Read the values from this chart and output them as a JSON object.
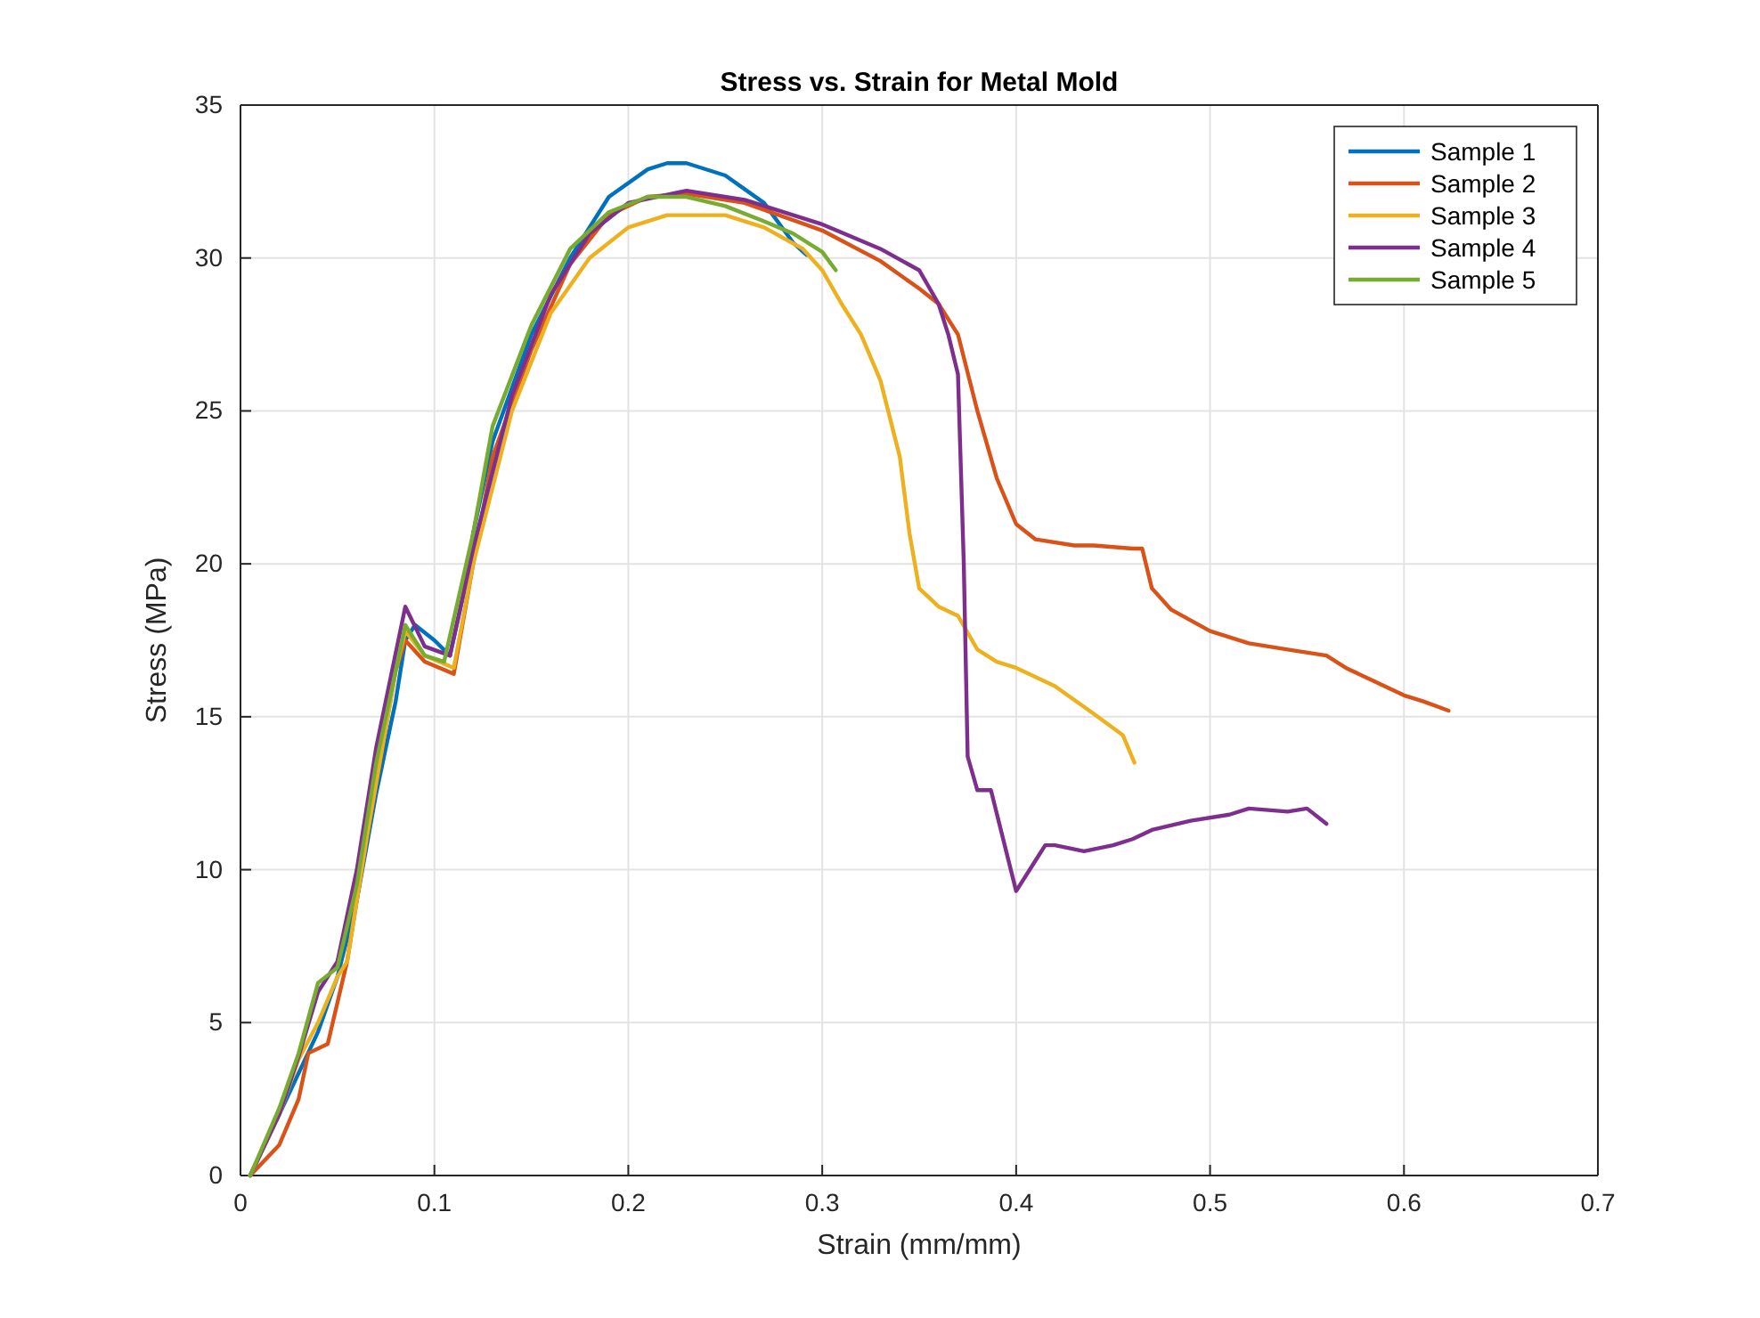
{
  "chart_data": {
    "type": "line",
    "title": "Stress vs. Strain for Metal Mold",
    "xlabel": "Strain (mm/mm)",
    "ylabel": "Stress (MPa)",
    "xlim": [
      0,
      0.7
    ],
    "xticks": [
      0,
      0.1,
      0.2,
      0.3,
      0.4,
      0.5,
      0.6,
      0.7
    ],
    "ylim": [
      0,
      35
    ],
    "yticks": [
      0,
      5,
      10,
      15,
      20,
      25,
      30,
      35
    ],
    "grid": true,
    "legend": "top right",
    "line_style": "solid",
    "series": [
      {
        "name": "Sample 1",
        "color": "#0072bd",
        "x": [
          0.005,
          0.02,
          0.04,
          0.05,
          0.06,
          0.07,
          0.08,
          0.085,
          0.09,
          0.1,
          0.108,
          0.115,
          0.12,
          0.13,
          0.15,
          0.17,
          0.19,
          0.21,
          0.22,
          0.23,
          0.25,
          0.27,
          0.285,
          0.292
        ],
        "values": [
          0,
          2,
          4.7,
          6.5,
          9,
          12.5,
          15.5,
          17.5,
          18,
          17.5,
          17,
          19,
          21,
          24,
          27.5,
          30,
          32,
          32.9,
          33.1,
          33.1,
          32.7,
          31.8,
          30.5,
          30.1
        ]
      },
      {
        "name": "Sample 2",
        "color": "#d95319",
        "x": [
          0.005,
          0.02,
          0.03,
          0.035,
          0.045,
          0.055,
          0.065,
          0.08,
          0.085,
          0.095,
          0.11,
          0.12,
          0.13,
          0.15,
          0.17,
          0.19,
          0.21,
          0.23,
          0.26,
          0.3,
          0.33,
          0.35,
          0.36,
          0.37,
          0.38,
          0.39,
          0.4,
          0.41,
          0.43,
          0.44,
          0.46,
          0.465,
          0.47,
          0.48,
          0.5,
          0.52,
          0.54,
          0.56,
          0.57,
          0.58,
          0.6,
          0.61,
          0.623
        ],
        "values": [
          0,
          1,
          2.5,
          4,
          4.3,
          7,
          11,
          16.5,
          17.5,
          16.8,
          16.4,
          20,
          23.5,
          27,
          29.8,
          31.4,
          32,
          32.1,
          31.8,
          30.9,
          29.9,
          29,
          28.5,
          27.5,
          25,
          22.8,
          21.3,
          20.8,
          20.6,
          20.6,
          20.5,
          20.5,
          19.2,
          18.5,
          17.8,
          17.4,
          17.2,
          17,
          16.6,
          16.3,
          15.7,
          15.5,
          15.2
        ]
      },
      {
        "name": "Sample 3",
        "color": "#edb120",
        "x": [
          0.005,
          0.02,
          0.03,
          0.04,
          0.05,
          0.055,
          0.065,
          0.08,
          0.085,
          0.095,
          0.11,
          0.12,
          0.14,
          0.16,
          0.18,
          0.2,
          0.22,
          0.25,
          0.27,
          0.29,
          0.3,
          0.31,
          0.32,
          0.33,
          0.34,
          0.345,
          0.35,
          0.36,
          0.37,
          0.38,
          0.39,
          0.4,
          0.42,
          0.44,
          0.455,
          0.461
        ],
        "values": [
          0,
          2,
          3.8,
          5,
          6.5,
          7,
          11,
          16.5,
          17.8,
          17,
          16.6,
          20,
          25,
          28.2,
          30,
          31,
          31.4,
          31.4,
          31,
          30.3,
          29.6,
          28.5,
          27.5,
          26,
          23.5,
          21,
          19.2,
          18.6,
          18.3,
          17.2,
          16.8,
          16.6,
          16,
          15.1,
          14.4,
          13.5
        ]
      },
      {
        "name": "Sample 4",
        "color": "#7e2f8e",
        "x": [
          0.005,
          0.02,
          0.03,
          0.04,
          0.05,
          0.06,
          0.07,
          0.085,
          0.095,
          0.108,
          0.12,
          0.14,
          0.16,
          0.18,
          0.2,
          0.23,
          0.26,
          0.3,
          0.33,
          0.35,
          0.36,
          0.365,
          0.37,
          0.373,
          0.375,
          0.38,
          0.387,
          0.4,
          0.41,
          0.415,
          0.42,
          0.435,
          0.45,
          0.46,
          0.47,
          0.49,
          0.51,
          0.52,
          0.54,
          0.55,
          0.56
        ],
        "values": [
          0,
          2,
          3.9,
          6,
          7,
          10,
          14,
          18.6,
          17.3,
          17,
          20.5,
          25.5,
          28.8,
          30.8,
          31.8,
          32.2,
          31.9,
          31.1,
          30.3,
          29.6,
          28.5,
          27.5,
          26.2,
          20,
          13.7,
          12.6,
          12.6,
          9.3,
          10.3,
          10.8,
          10.8,
          10.6,
          10.8,
          11,
          11.3,
          11.6,
          11.8,
          12,
          11.9,
          12,
          11.5
        ]
      },
      {
        "name": "Sample 5",
        "color": "#77ac30",
        "x": [
          0.005,
          0.02,
          0.03,
          0.04,
          0.05,
          0.06,
          0.07,
          0.085,
          0.095,
          0.105,
          0.12,
          0.13,
          0.15,
          0.17,
          0.19,
          0.21,
          0.23,
          0.25,
          0.27,
          0.285,
          0.3,
          0.307
        ],
        "values": [
          0,
          2.2,
          4,
          6.3,
          6.8,
          9.5,
          13.5,
          18,
          17,
          16.8,
          21,
          24.5,
          27.8,
          30.3,
          31.5,
          32,
          32,
          31.7,
          31.2,
          30.8,
          30.2,
          29.6
        ]
      }
    ]
  }
}
